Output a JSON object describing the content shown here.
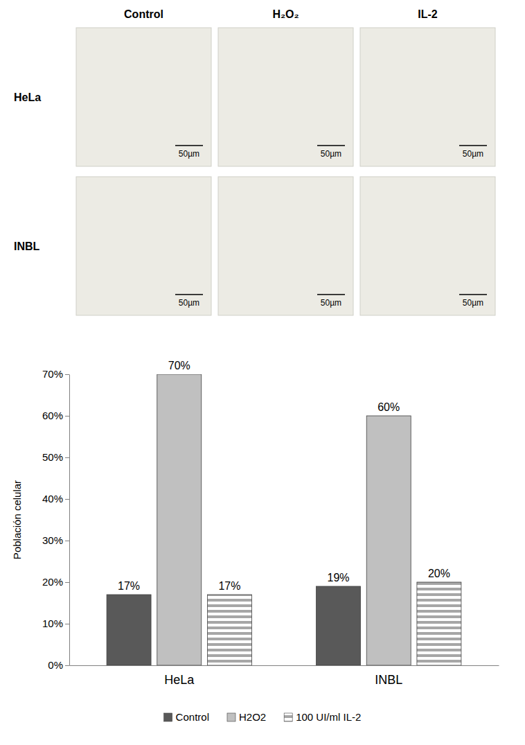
{
  "micrographs": {
    "columns": [
      "Control",
      "H₂O₂",
      "IL-2"
    ],
    "rows": [
      "HeLa",
      "INBL"
    ],
    "scale_bar": "50µm"
  },
  "chart_data": {
    "type": "bar",
    "y_label": "Población celular",
    "categories": [
      "HeLa",
      "INBL"
    ],
    "series": [
      {
        "name": "Control",
        "color": "#595959",
        "values": [
          17,
          19
        ],
        "value_labels": [
          "17%",
          "19%"
        ]
      },
      {
        "name": "H2O2",
        "color": "#c0c0c0",
        "values": [
          70,
          60
        ],
        "value_labels": [
          "70%",
          "60%"
        ]
      },
      {
        "name": "100 UI/ml IL-2",
        "color": "#a6a6a6",
        "values": [
          17,
          20
        ],
        "value_labels": [
          "17%",
          "20%"
        ]
      }
    ],
    "ylim": [
      0,
      70
    ],
    "yticks": [
      {
        "value": 0,
        "label": "0%"
      },
      {
        "value": 10,
        "label": "10%"
      },
      {
        "value": 20,
        "label": "20%"
      },
      {
        "value": 30,
        "label": "30%"
      },
      {
        "value": 40,
        "label": "40%"
      },
      {
        "value": 50,
        "label": "50%"
      },
      {
        "value": 60,
        "label": "60%"
      },
      {
        "value": 70,
        "label": "70%"
      }
    ],
    "grid": false,
    "legend": "bottom",
    "data_labels": true
  }
}
